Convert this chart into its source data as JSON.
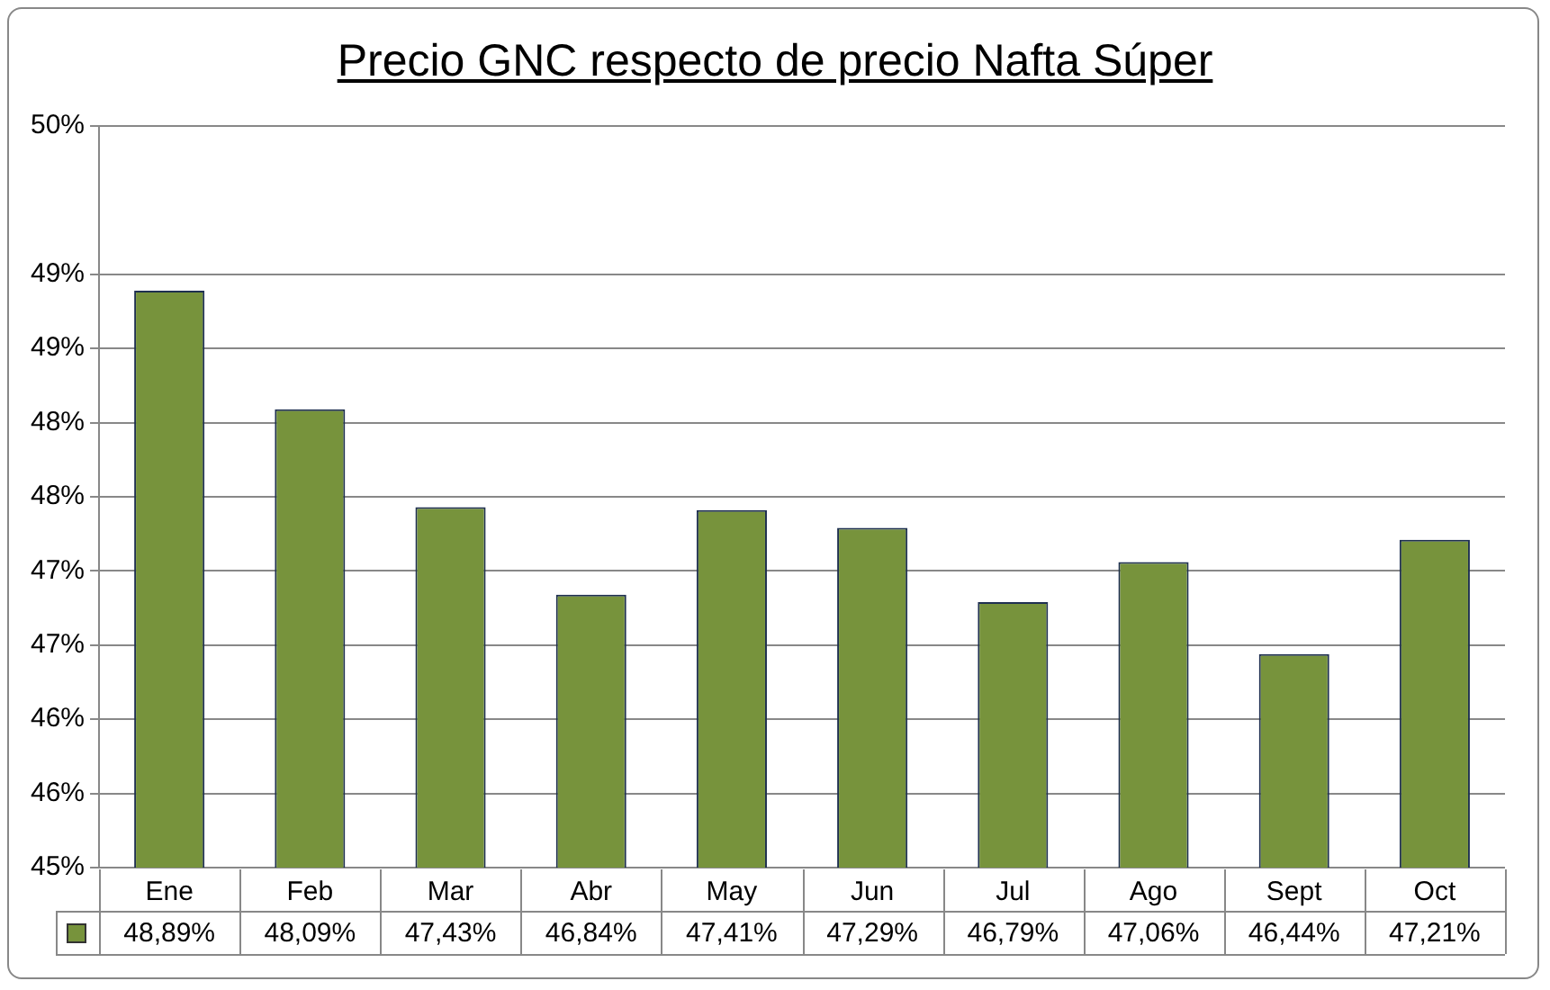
{
  "chart_data": {
    "type": "bar",
    "title": "Precio GNC respecto de precio Nafta Súper",
    "categories": [
      "Ene",
      "Feb",
      "Mar",
      "Abr",
      "May",
      "Jun",
      "Jul",
      "Ago",
      "Sept",
      "Oct"
    ],
    "values": [
      48.89,
      48.09,
      47.43,
      46.84,
      47.41,
      47.29,
      46.79,
      47.06,
      46.44,
      47.21
    ],
    "value_labels": [
      "48,89%",
      "48,09%",
      "47,43%",
      "46,84%",
      "47,41%",
      "47,29%",
      "46,79%",
      "47,06%",
      "46,44%",
      "47,21%"
    ],
    "color": "#77933c",
    "ylim": [
      45,
      50
    ],
    "yticks": [
      "45%",
      {
        "value": 45.5,
        "label": "46%"
      },
      {
        "value": 46,
        "label": "46%"
      },
      {
        "value": 46.5,
        "label": "47%"
      },
      {
        "value": 47,
        "label": "47%"
      },
      {
        "value": 47.5,
        "label": "48%"
      },
      {
        "value": 48,
        "label": "48%"
      },
      {
        "value": 48.5,
        "label": "49%"
      },
      {
        "value": 49,
        "label": "49%"
      },
      "50%"
    ],
    "grid": "y",
    "legend": false
  }
}
